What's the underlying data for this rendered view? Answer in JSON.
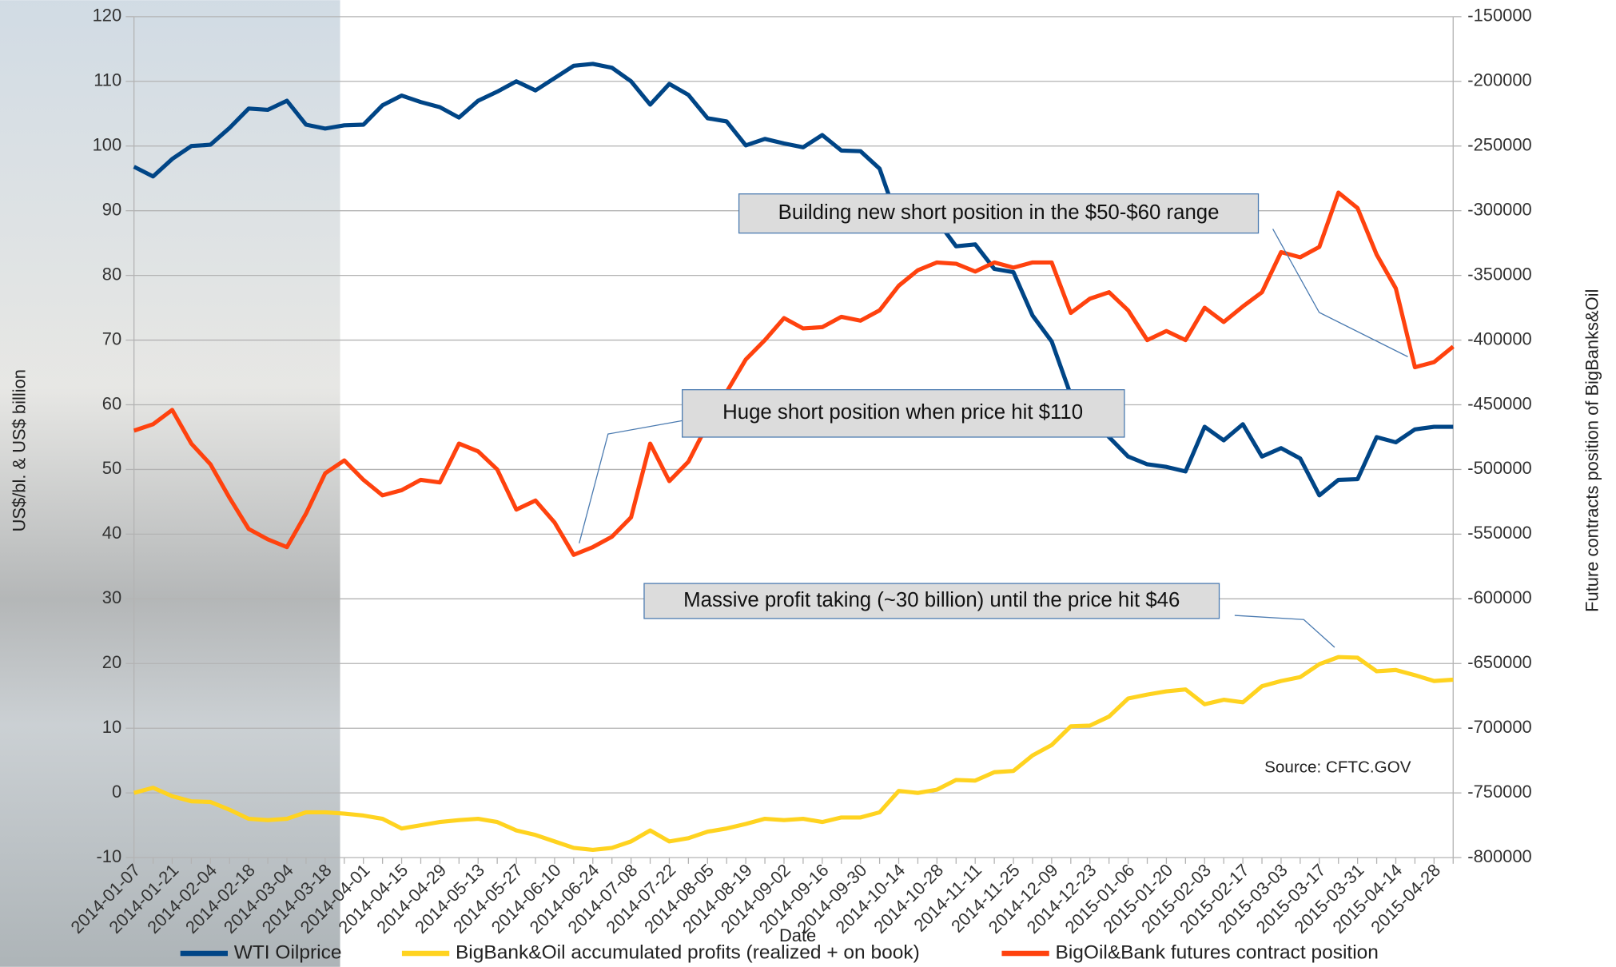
{
  "chart_data": {
    "type": "line",
    "x_label": "Date",
    "y_label": "US$/bl. & US$ billion",
    "y2_label": "Future contracts position of BigBanks&Oil",
    "source": "Source: CFTC.GOV",
    "annotations": [
      "Building new short position in the $50-$60 range",
      "Huge short position when price hit $110",
      "Massive profit taking (~30 billion) until the price hit $46"
    ],
    "categories": [
      "2014-01-07",
      null,
      "2014-01-21",
      null,
      "2014-02-04",
      null,
      "2014-02-18",
      null,
      "2014-03-04",
      null,
      "2014-03-18",
      null,
      "2014-04-01",
      null,
      "2014-04-15",
      null,
      "2014-04-29",
      null,
      "2014-05-13",
      null,
      "2014-05-27",
      null,
      "2014-06-10",
      null,
      "2014-06-24",
      null,
      "2014-07-08",
      null,
      "2014-07-22",
      null,
      "2014-08-05",
      null,
      "2014-08-19",
      null,
      "2014-09-02",
      null,
      "2014-09-16",
      null,
      "2014-09-30",
      null,
      "2014-10-14",
      null,
      "2014-10-28",
      null,
      "2014-11-11",
      null,
      "2014-11-25",
      null,
      "2014-12-09",
      null,
      "2014-12-23",
      null,
      "2015-01-06",
      null,
      "2015-01-20",
      null,
      "2015-02-03",
      null,
      "2015-02-17",
      null,
      "2015-03-03",
      null,
      "2015-03-17",
      null,
      "2015-03-31",
      null,
      "2015-04-14",
      null,
      "2015-04-28",
      null
    ],
    "series": [
      {
        "name": "WTI Oilprice",
        "color": "#004586",
        "axis": "y",
        "values": [
          96.8,
          95.3,
          98,
          100,
          100.2,
          102.8,
          105.8,
          105.6,
          107,
          103.3,
          102.7,
          103.2,
          103.3,
          106.3,
          107.8,
          106.8,
          106,
          104.4,
          107,
          108.4,
          110,
          108.6,
          110.5,
          112.4,
          112.7,
          112.1,
          110,
          106.4,
          109.6,
          107.9,
          104.3,
          103.8,
          100.1,
          101.1,
          100.4,
          99.8,
          101.7,
          99.3,
          99.2,
          96.5,
          88,
          89,
          88.5,
          84.5,
          84.8,
          81,
          80.5,
          73.8,
          69.8,
          61.5,
          58,
          55,
          52,
          50.8,
          50.4,
          49.7,
          56.6,
          54.5,
          57,
          52,
          53.3,
          51.7,
          46,
          48.4,
          48.5,
          55,
          54.2,
          56.2,
          56.6,
          56.6
        ]
      },
      {
        "name": "BigBank&Oil accumulated profits (realized + on book)",
        "color": "#ffd320",
        "axis": "y",
        "values": [
          0,
          0.8,
          -0.5,
          -1.3,
          -1.4,
          -2.6,
          -4,
          -4.2,
          -4,
          -3,
          -3,
          -3.2,
          -3.5,
          -4,
          -5.5,
          -5,
          -4.5,
          -4.2,
          -4,
          -4.5,
          -5.8,
          -6.5,
          -7.5,
          -8.5,
          -8.8,
          -8.5,
          -7.5,
          -5.8,
          -7.5,
          -7,
          -6,
          -5.5,
          -4.8,
          -4,
          -4.2,
          -4,
          -4.5,
          -3.8,
          -3.8,
          -3,
          0.3,
          0,
          0.5,
          2,
          1.9,
          3.2,
          3.4,
          5.8,
          7.4,
          10.3,
          10.4,
          11.8,
          14.6,
          15.2,
          15.7,
          16,
          13.7,
          14.4,
          14,
          16.5,
          17.3,
          17.9,
          19.9,
          21,
          20.9,
          18.8,
          19,
          18.2,
          17.3,
          17.5
        ]
      },
      {
        "name": "BigOil&Bank futures contract position",
        "color": "#ff420e",
        "axis": "y2",
        "values": [
          -470000,
          -465000,
          -454000,
          -480000,
          -496000,
          -522000,
          -546000,
          -554000,
          -560000,
          -534000,
          -503000,
          -493000,
          -508000,
          -520000,
          -516000,
          -508000,
          -510000,
          -480000,
          -486000,
          -500000,
          -531000,
          -524000,
          -541000,
          -566000,
          -560000,
          -552000,
          -537000,
          -480000,
          -509000,
          -494000,
          -465000,
          -440000,
          -415000,
          -400000,
          -383000,
          -391000,
          -390000,
          -382000,
          -385000,
          -377000,
          -358000,
          -346000,
          -340000,
          -341000,
          -347000,
          -340000,
          -344000,
          -340000,
          -340000,
          -379000,
          -368000,
          -363000,
          -377000,
          -400000,
          -393000,
          -400000,
          -375000,
          -386000,
          -374000,
          -363000,
          -332000,
          -336000,
          -328000,
          -286000,
          -298000,
          -334000,
          -360000,
          -421000,
          -417000,
          -405000
        ]
      }
    ],
    "ylim": [
      -10,
      120
    ],
    "yticks": [
      -10,
      0,
      10,
      20,
      30,
      40,
      50,
      60,
      70,
      80,
      90,
      100,
      110,
      120
    ],
    "y2lim": [
      -800000,
      -150000
    ],
    "y2ticks": [
      -800000,
      -750000,
      -700000,
      -650000,
      -600000,
      -550000,
      -500000,
      -450000,
      -400000,
      -350000,
      -300000,
      -250000,
      -200000,
      -150000
    ],
    "grid": true,
    "legend": "bottom"
  }
}
